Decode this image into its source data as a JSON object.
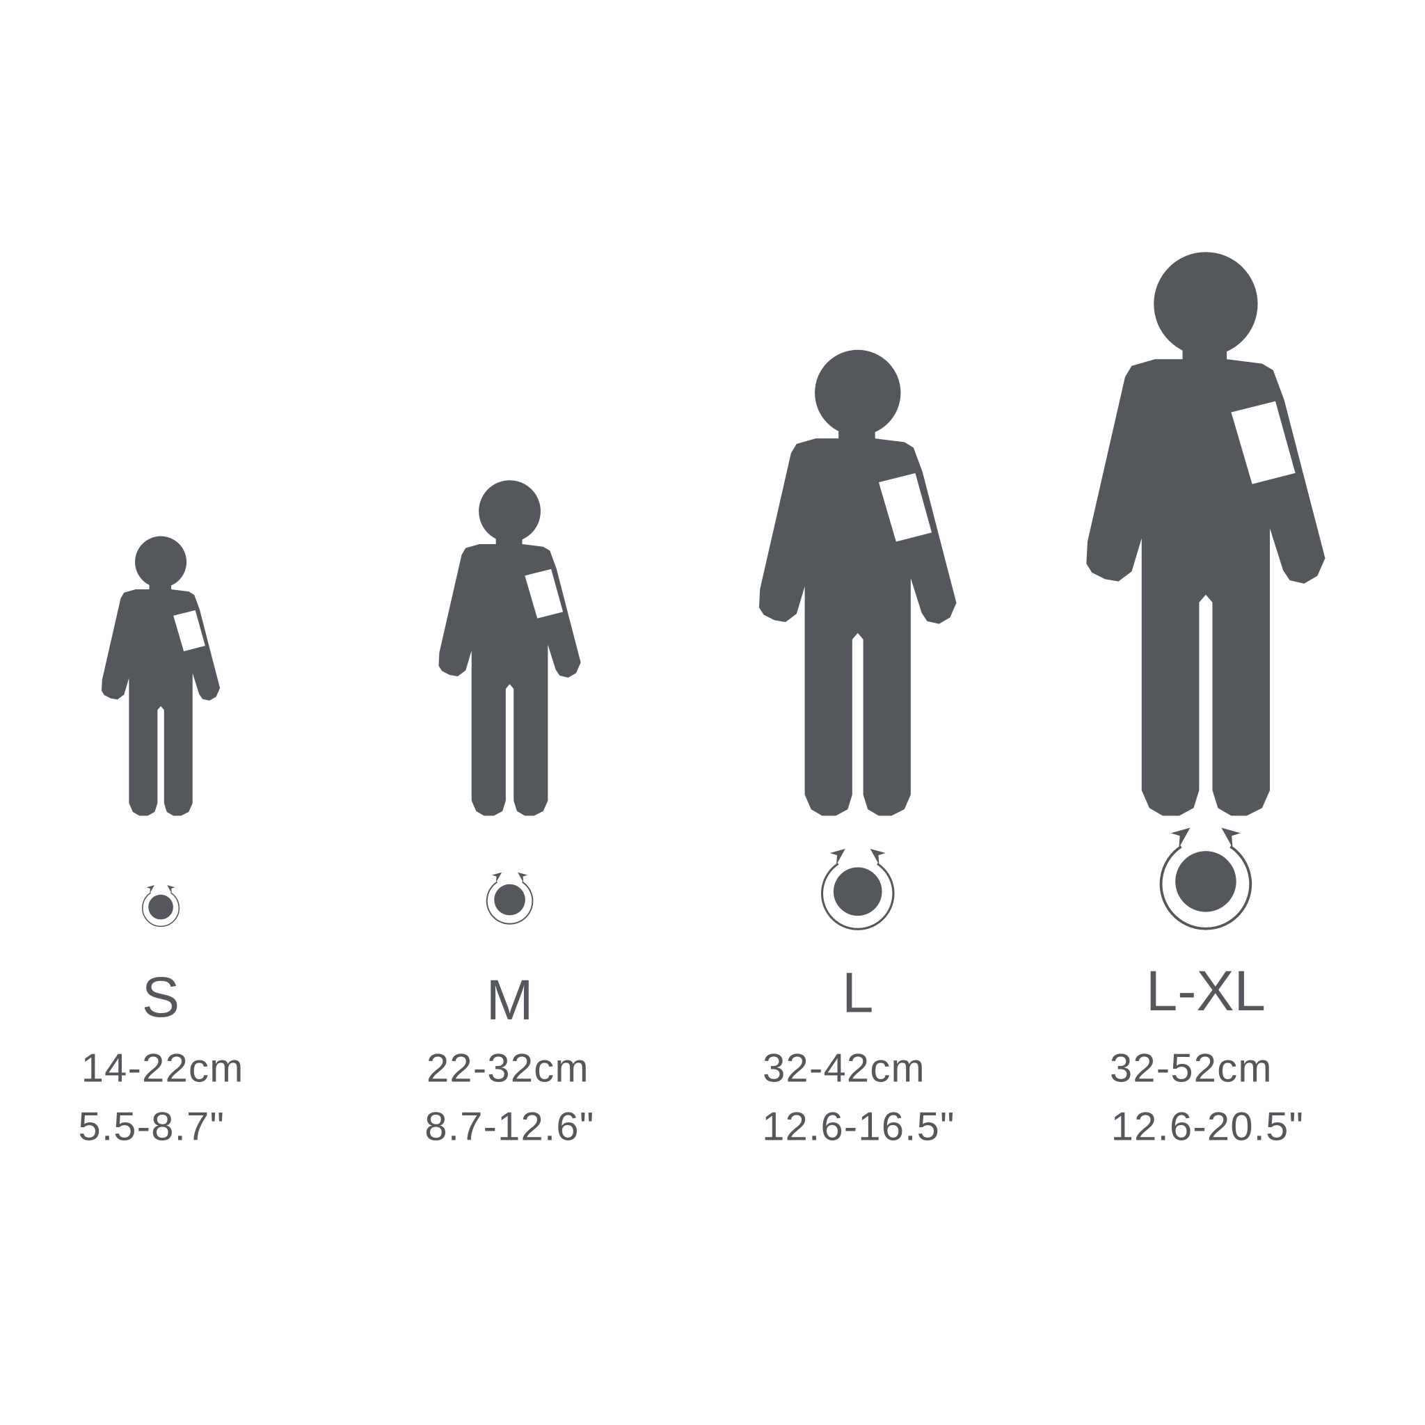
{
  "colors": {
    "figure": "#54575b",
    "background": "#ffffff",
    "patch": "#ffffff"
  },
  "sizes": [
    {
      "label": "S",
      "cm": "14-22cm",
      "inch": "5.5-8.7\""
    },
    {
      "label": "M",
      "cm": "22-32cm",
      "inch": "8.7-12.6\""
    },
    {
      "label": "L",
      "cm": "32-42cm",
      "inch": "12.6-16.5\""
    },
    {
      "label": "L-XL",
      "cm": "32-52cm",
      "inch": "12.6-20.5\""
    }
  ],
  "icons": {
    "figure": "person-silhouette-icon",
    "measure": "arm-circumference-icon"
  }
}
